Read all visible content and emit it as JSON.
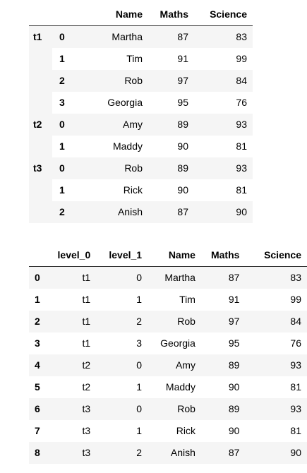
{
  "table1": {
    "columns": [
      "Name",
      "Maths",
      "Science"
    ],
    "groups": [
      {
        "label": "t1",
        "rows": [
          {
            "idx": "0",
            "name": "Martha",
            "maths": "87",
            "science": "83"
          },
          {
            "idx": "1",
            "name": "Tim",
            "maths": "91",
            "science": "99"
          },
          {
            "idx": "2",
            "name": "Rob",
            "maths": "97",
            "science": "84"
          },
          {
            "idx": "3",
            "name": "Georgia",
            "maths": "95",
            "science": "76"
          }
        ]
      },
      {
        "label": "t2",
        "rows": [
          {
            "idx": "0",
            "name": "Amy",
            "maths": "89",
            "science": "93"
          },
          {
            "idx": "1",
            "name": "Maddy",
            "maths": "90",
            "science": "81"
          }
        ]
      },
      {
        "label": "t3",
        "rows": [
          {
            "idx": "0",
            "name": "Rob",
            "maths": "89",
            "science": "93"
          },
          {
            "idx": "1",
            "name": "Rick",
            "maths": "90",
            "science": "81"
          },
          {
            "idx": "2",
            "name": "Anish",
            "maths": "87",
            "science": "90"
          }
        ]
      }
    ]
  },
  "table2": {
    "columns": [
      "level_0",
      "level_1",
      "Name",
      "Maths",
      "Science"
    ],
    "rows": [
      {
        "idx": "0",
        "level_0": "t1",
        "level_1": "0",
        "name": "Martha",
        "maths": "87",
        "science": "83"
      },
      {
        "idx": "1",
        "level_0": "t1",
        "level_1": "1",
        "name": "Tim",
        "maths": "91",
        "science": "99"
      },
      {
        "idx": "2",
        "level_0": "t1",
        "level_1": "2",
        "name": "Rob",
        "maths": "97",
        "science": "84"
      },
      {
        "idx": "3",
        "level_0": "t1",
        "level_1": "3",
        "name": "Georgia",
        "maths": "95",
        "science": "76"
      },
      {
        "idx": "4",
        "level_0": "t2",
        "level_1": "0",
        "name": "Amy",
        "maths": "89",
        "science": "93"
      },
      {
        "idx": "5",
        "level_0": "t2",
        "level_1": "1",
        "name": "Maddy",
        "maths": "90",
        "science": "81"
      },
      {
        "idx": "6",
        "level_0": "t3",
        "level_1": "0",
        "name": "Rob",
        "maths": "89",
        "science": "93"
      },
      {
        "idx": "7",
        "level_0": "t3",
        "level_1": "1",
        "name": "Rick",
        "maths": "90",
        "science": "81"
      },
      {
        "idx": "8",
        "level_0": "t3",
        "level_1": "2",
        "name": "Anish",
        "maths": "87",
        "science": "90"
      }
    ]
  }
}
